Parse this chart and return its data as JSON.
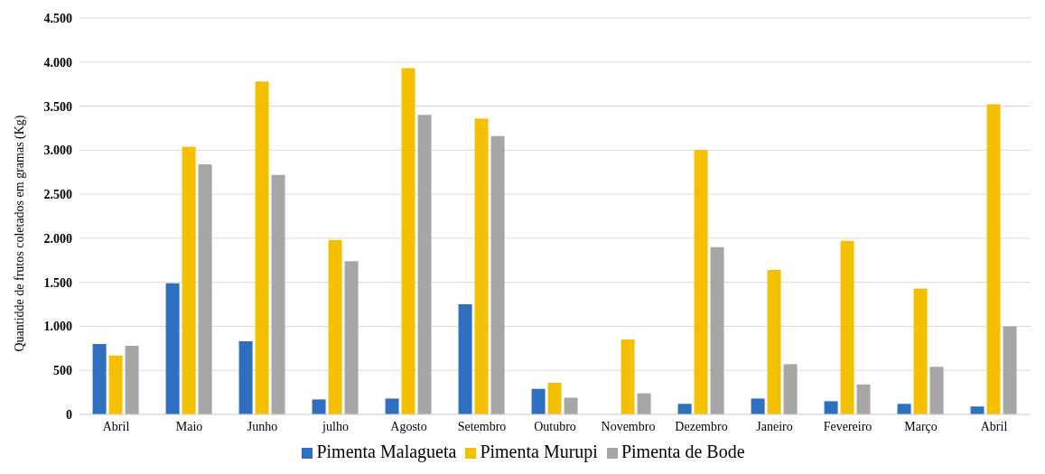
{
  "chart_data": {
    "type": "bar",
    "ylabel": "Quantidde de frutos coletados em gramas  (Kg)",
    "categories": [
      "Abril",
      "Maio",
      "Junho",
      "julho",
      "Agosto",
      "Setembro",
      "Outubro",
      "Novembro",
      "Dezembro",
      "Janeiro",
      "Fevereiro",
      "Março",
      "Abril"
    ],
    "series": [
      {
        "name": "Pimenta Malagueta",
        "color": "#2e6fbf",
        "values": [
          800,
          1490,
          830,
          170,
          180,
          1250,
          290,
          null,
          120,
          180,
          150,
          120,
          90
        ]
      },
      {
        "name": "Pimenta Murupi",
        "color": "#f5c000",
        "values": [
          670,
          3040,
          3780,
          1980,
          3930,
          3360,
          360,
          850,
          3000,
          1640,
          1970,
          1430,
          3520
        ]
      },
      {
        "name": "Pimenta de Bode",
        "color": "#a6a6a6",
        "values": [
          780,
          2840,
          2720,
          1740,
          3400,
          3160,
          190,
          240,
          1900,
          570,
          340,
          540,
          1000
        ]
      }
    ],
    "ylim": [
      0,
      4500
    ],
    "yticks": [
      {
        "value": 0,
        "label": "0"
      },
      {
        "value": 500,
        "label": "500"
      },
      {
        "value": 1000,
        "label": "1.000"
      },
      {
        "value": 1500,
        "label": "1.500"
      },
      {
        "value": 2000,
        "label": "2.000"
      },
      {
        "value": 2500,
        "label": "2.500"
      },
      {
        "value": 3000,
        "label": "3.000"
      },
      {
        "value": 3500,
        "label": "3.500"
      },
      {
        "value": 4000,
        "label": "4.000"
      },
      {
        "value": 4500,
        "label": "4.500"
      }
    ],
    "grid": "y",
    "legend": "bottom"
  }
}
